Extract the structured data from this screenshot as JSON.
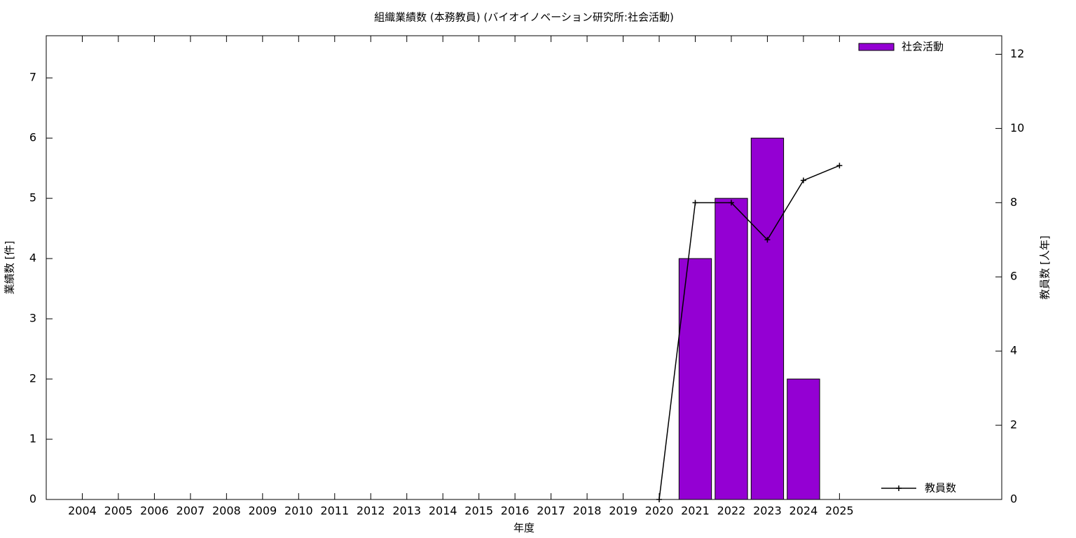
{
  "chart_data": {
    "type": "bar",
    "title": "組織業績数 (本務教員) (バイオイノベーション研究所:社会活動)",
    "xlabel": "年度",
    "ylabel": "業績数 [件]",
    "y2label": "教員数 [人年]",
    "x": [
      2004,
      2005,
      2006,
      2007,
      2008,
      2009,
      2010,
      2011,
      2012,
      2013,
      2014,
      2015,
      2016,
      2017,
      2018,
      2019,
      2020,
      2021,
      2022,
      2023,
      2024,
      2025
    ],
    "xlim": [
      2003,
      2029.5
    ],
    "xticks": [
      2004,
      2005,
      2006,
      2007,
      2008,
      2009,
      2010,
      2011,
      2012,
      2013,
      2014,
      2015,
      2016,
      2017,
      2018,
      2019,
      2020,
      2021,
      2022,
      2023,
      2024,
      2025
    ],
    "ylim": [
      0,
      7.7
    ],
    "yticks": [
      0,
      1,
      2,
      3,
      4,
      5,
      6,
      7
    ],
    "y2lim": [
      0,
      12.5
    ],
    "y2ticks": [
      0,
      2,
      4,
      6,
      8,
      10,
      12
    ],
    "series": [
      {
        "name": "社会活動",
        "type": "bar",
        "color": "#9400d3",
        "values": [
          null,
          null,
          null,
          null,
          null,
          null,
          null,
          null,
          null,
          null,
          null,
          null,
          null,
          null,
          null,
          null,
          null,
          4,
          5,
          6,
          2,
          null
        ]
      },
      {
        "name": "教員数",
        "type": "line",
        "axis": "y2",
        "color": "#000000",
        "values": [
          null,
          null,
          null,
          null,
          null,
          null,
          null,
          null,
          null,
          null,
          null,
          null,
          null,
          null,
          null,
          null,
          0,
          8,
          8,
          7,
          8.6,
          9
        ]
      }
    ],
    "legend": "right"
  }
}
